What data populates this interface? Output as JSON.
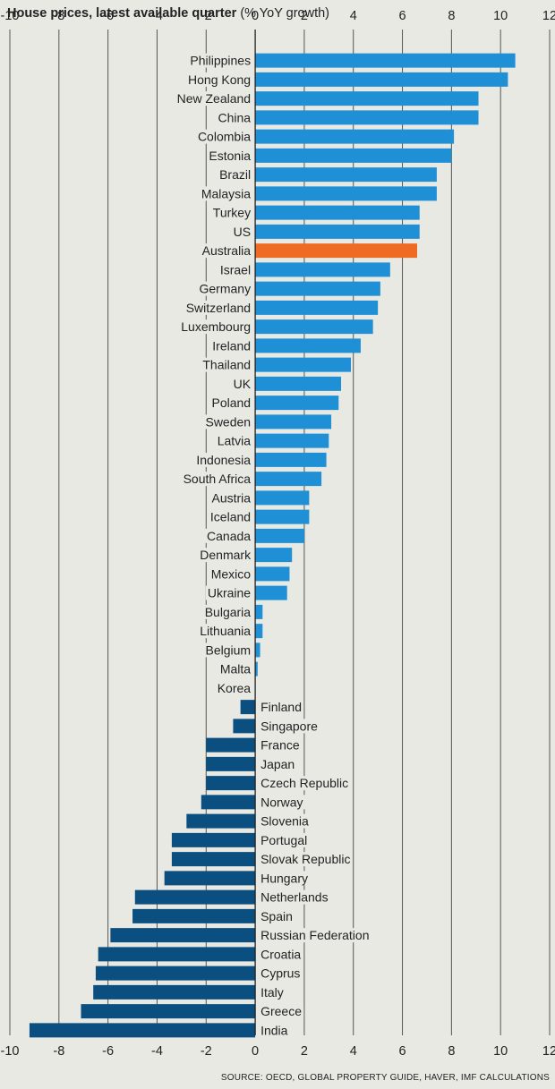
{
  "title_bold": "House prices, latest available quarter",
  "title_rest": "(% YoY growth)",
  "source": "SOURCE: OECD, GLOBAL PROPERTY GUIDE, HAVER, IMF CALCULATIONS",
  "colors": {
    "positive": "#1f8fd6",
    "highlight": "#ef6a22",
    "negative": "#0b4f80",
    "grid": "#555555",
    "background": "#e9e9e4"
  },
  "chart_data": {
    "type": "bar",
    "orientation": "horizontal",
    "xlim": [
      -10,
      12
    ],
    "xticks": [
      "-10",
      "-8",
      "-6",
      "-4",
      "-2",
      "0",
      "2",
      "4",
      "6",
      "8",
      "10",
      "12"
    ],
    "grid": true,
    "highlighted_category": "Australia",
    "categories": [
      "Philippines",
      "Hong Kong",
      "New Zealand",
      "China",
      "Colombia",
      "Estonia",
      "Brazil",
      "Malaysia",
      "Turkey",
      "US",
      "Australia",
      "Israel",
      "Germany",
      "Switzerland",
      "Luxembourg",
      "Ireland",
      "Thailand",
      "UK",
      "Poland",
      "Sweden",
      "Latvia",
      "Indonesia",
      "South Africa",
      "Austria",
      "Iceland",
      "Canada",
      "Denmark",
      "Mexico",
      "Ukraine",
      "Bulgaria",
      "Lithuania",
      "Belgium",
      "Malta",
      "Korea",
      "Finland",
      "Singapore",
      "France",
      "Japan",
      "Czech Republic",
      "Norway",
      "Slovenia",
      "Portugal",
      "Slovak Republic",
      "Hungary",
      "Netherlands",
      "Spain",
      "Russian Federation",
      "Croatia",
      "Cyprus",
      "Italy",
      "Greece",
      "India"
    ],
    "values": [
      10.6,
      10.3,
      9.1,
      9.1,
      8.1,
      8.0,
      7.4,
      7.4,
      6.7,
      6.7,
      6.6,
      5.5,
      5.1,
      5.0,
      4.8,
      4.3,
      3.9,
      3.5,
      3.4,
      3.1,
      3.0,
      2.9,
      2.7,
      2.2,
      2.2,
      2.0,
      1.5,
      1.4,
      1.3,
      0.3,
      0.3,
      0.2,
      0.1,
      0.0,
      -0.6,
      -0.9,
      -2.0,
      -2.0,
      -2.0,
      -2.2,
      -2.8,
      -3.4,
      -3.4,
      -3.7,
      -4.9,
      -5.0,
      -5.9,
      -6.4,
      -6.5,
      -6.6,
      -7.1,
      -9.2
    ]
  }
}
